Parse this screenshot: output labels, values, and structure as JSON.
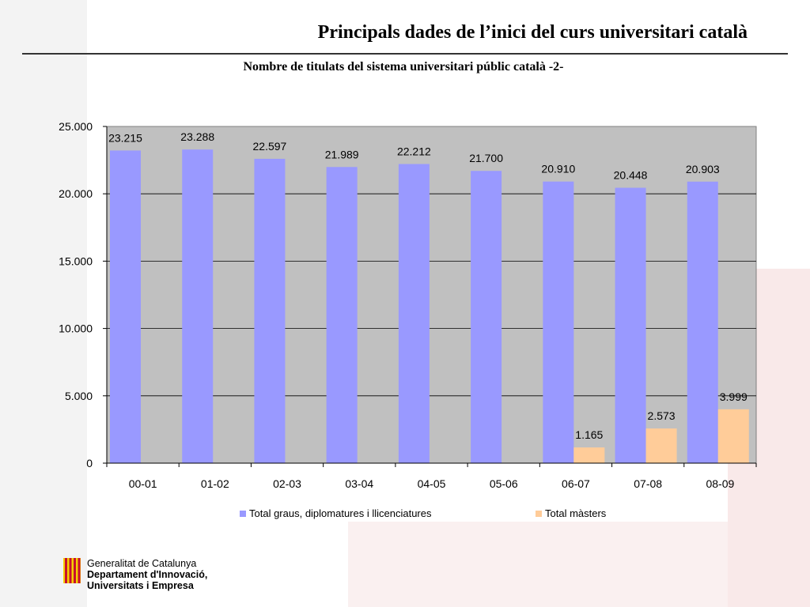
{
  "slide_title": "Principals dades de l’inici del curs universitari català",
  "chart_data": {
    "type": "bar",
    "title": "Nombre de titulats del sistema universitari públic català -2-",
    "categories": [
      "00-01",
      "01-02",
      "02-03",
      "03-04",
      "04-05",
      "05-06",
      "06-07",
      "07-08",
      "08-09"
    ],
    "series": [
      {
        "name": "Total graus, diplomatures i llicenciatures",
        "color": "#9999ff",
        "values": [
          23215,
          23288,
          22597,
          21989,
          22212,
          21700,
          20910,
          20448,
          20903
        ],
        "labels": [
          "23.215",
          "23.288",
          "22.597",
          "21.989",
          "22.212",
          "21.700",
          "20.910",
          "20.448",
          "20.903"
        ]
      },
      {
        "name": "Total màsters",
        "color": "#ffcc99",
        "values": [
          null,
          null,
          null,
          null,
          null,
          null,
          1165,
          2573,
          3999
        ],
        "labels": [
          "",
          "",
          "",
          "",
          "",
          "",
          "1.165",
          "2.573",
          "3.999"
        ]
      }
    ],
    "ylim": [
      0,
      25000
    ],
    "yticks": [
      0,
      5000,
      10000,
      15000,
      20000,
      25000
    ],
    "ytick_labels": [
      "0",
      "5.000",
      "10.000",
      "15.000",
      "20.000",
      "25.000"
    ],
    "grid": true,
    "plot_background": "#c0c0c0",
    "legend_position": "bottom"
  },
  "logo": {
    "line1": "Generalitat de Catalunya",
    "line2": "Departament d'Innovació,",
    "line3": "Universitats i Empresa"
  }
}
